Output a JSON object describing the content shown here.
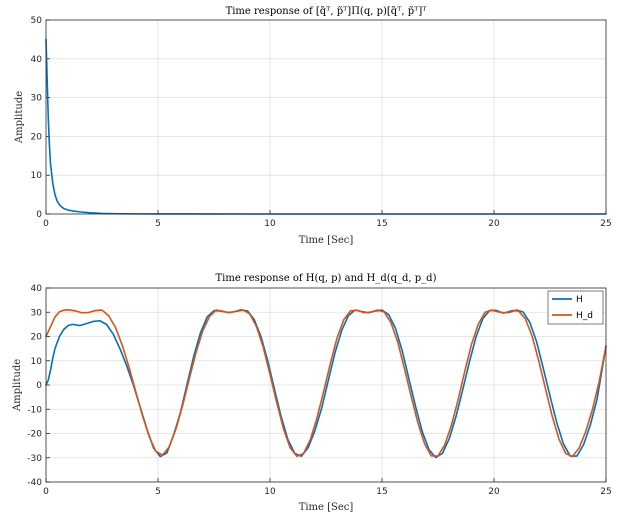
{
  "colors": {
    "H": "#0072bd",
    "H_d": "#d95319",
    "grid": "#dfdfdf",
    "axis": "#262626"
  },
  "chart_data": [
    {
      "type": "line",
      "title": "Time response of [q̃ᵀ, p̃ᵀ]Π(q, p)[q̃ᵀ, p̃ᵀ]ᵀ",
      "xlabel": "Time [Sec]",
      "ylabel": "Amplitude",
      "xlim": [
        0,
        25
      ],
      "ylim": [
        0,
        50
      ],
      "xticks": [
        0,
        5,
        10,
        15,
        20,
        25
      ],
      "yticks": [
        0,
        10,
        20,
        30,
        40,
        50
      ],
      "grid": true,
      "series": [
        {
          "color": "#0072bd",
          "x": [
            0,
            0.05,
            0.1,
            0.15,
            0.2,
            0.3,
            0.4,
            0.5,
            0.6,
            0.7,
            0.8,
            1.0,
            1.2,
            1.5,
            2.0,
            2.5,
            3.0,
            4.0,
            5.0,
            7.0,
            10.0,
            15.0,
            20.0,
            25.0
          ],
          "y": [
            45,
            35,
            25,
            18,
            13,
            8,
            5,
            3.3,
            2.4,
            1.8,
            1.4,
            1.0,
            0.8,
            0.55,
            0.3,
            0.15,
            0.08,
            0.03,
            0.01,
            0.01,
            0,
            0,
            0,
            0
          ]
        }
      ]
    },
    {
      "type": "line",
      "title": "Time response of H(q, p) and H_d(q_d, p_d)",
      "xlabel": "Time [Sec]",
      "ylabel": "Amplitude",
      "xlim": [
        0,
        25
      ],
      "ylim": [
        -40,
        40
      ],
      "xticks": [
        0,
        5,
        10,
        15,
        20,
        25
      ],
      "yticks": [
        -40,
        -30,
        -20,
        -10,
        0,
        10,
        20,
        30,
        40
      ],
      "grid": true,
      "legend": {
        "placement": "top-right",
        "entries": [
          "H",
          "H_d"
        ]
      },
      "series": [
        {
          "name": "H",
          "color": "#0072bd",
          "x": [
            0,
            0.1,
            0.2,
            0.3,
            0.4,
            0.6,
            0.8,
            1.0,
            1.2,
            1.5,
            1.8,
            2.1,
            2.4,
            2.7,
            3.0,
            3.3,
            3.6,
            3.9,
            4.2,
            4.5,
            4.8,
            5.1,
            5.4,
            5.7,
            6.0,
            6.3,
            6.6,
            6.9,
            7.2,
            7.5,
            7.8,
            8.1,
            8.4,
            8.7,
            9.0,
            9.3,
            9.6,
            9.9,
            10.2,
            10.5,
            10.8,
            11.1,
            11.4,
            11.7,
            12.0,
            12.3,
            12.6,
            12.9,
            13.2,
            13.5,
            13.8,
            14.1,
            14.4,
            14.7,
            15.0,
            15.3,
            15.6,
            15.9,
            16.2,
            16.5,
            16.8,
            17.1,
            17.4,
            17.7,
            18.0,
            18.3,
            18.6,
            18.9,
            19.2,
            19.5,
            19.8,
            20.1,
            20.4,
            20.7,
            21.0,
            21.3,
            21.6,
            21.9,
            22.2,
            22.5,
            22.8,
            23.1,
            23.4,
            23.7,
            24.0,
            24.3,
            24.6,
            25.0
          ],
          "y": [
            0,
            2,
            6,
            11,
            15,
            20,
            23,
            24.6,
            25,
            24.5,
            25.3,
            26.2,
            26.5,
            25,
            21,
            15,
            8,
            0,
            -9,
            -18,
            -26,
            -29.5,
            -28,
            -20.5,
            -11.4,
            0.4,
            12,
            21.6,
            28.1,
            30.7,
            30.5,
            29.9,
            30.2,
            31,
            30.5,
            26.9,
            19.9,
            9.9,
            -1.8,
            -13.1,
            -22.5,
            -28.2,
            -29.4,
            -25.9,
            -19,
            -9.8,
            1.8,
            13.2,
            22.5,
            28.6,
            30.9,
            30.3,
            29.8,
            30.5,
            30.9,
            29,
            23.4,
            14.2,
            2.6,
            -8.9,
            -19.3,
            -26.7,
            -29.9,
            -28.2,
            -22.2,
            -13.1,
            -2.1,
            9.4,
            19.9,
            27.4,
            30.7,
            30.8,
            29.7,
            30,
            30.9,
            30.1,
            25.8,
            17.9,
            6.9,
            -4.5,
            -15.5,
            -24.3,
            -29.3,
            -29.3,
            -24.6,
            -16.5,
            -5.9,
            16
          ]
        },
        {
          "name": "H_d",
          "color": "#d95319",
          "x": [
            0,
            0.2,
            0.4,
            0.6,
            0.8,
            1.0,
            1.3,
            1.6,
            1.9,
            2.2,
            2.5,
            2.8,
            3.1,
            3.4,
            3.7,
            4.0,
            4.3,
            4.6,
            4.9,
            5.2,
            5.5,
            5.8,
            6.1,
            6.4,
            6.7,
            7.0,
            7.3,
            7.6,
            7.9,
            8.2,
            8.5,
            8.8,
            9.1,
            9.4,
            9.7,
            10.0,
            10.3,
            10.6,
            10.9,
            11.2,
            11.5,
            11.8,
            12.1,
            12.4,
            12.7,
            13.0,
            13.3,
            13.6,
            13.9,
            14.2,
            14.5,
            14.8,
            15.1,
            15.4,
            15.7,
            16.0,
            16.3,
            16.6,
            16.9,
            17.2,
            17.5,
            17.8,
            18.1,
            18.4,
            18.7,
            19.0,
            19.3,
            19.6,
            19.9,
            20.2,
            20.5,
            20.8,
            21.1,
            21.4,
            21.7,
            22.0,
            22.3,
            22.6,
            22.9,
            23.2,
            23.5,
            23.8,
            24.1,
            24.4,
            24.7,
            25.0
          ],
          "y": [
            20,
            24,
            28,
            30.2,
            30.9,
            31,
            30.6,
            29.8,
            29.9,
            30.7,
            30.9,
            28.5,
            23.8,
            16.5,
            7.5,
            -2.5,
            -12.4,
            -21.1,
            -27.3,
            -28.9,
            -25.5,
            -18.2,
            -8.4,
            2.7,
            13.5,
            22.4,
            28.3,
            30.9,
            30.4,
            29.8,
            30.4,
            30.9,
            29.3,
            24,
            15.5,
            4.4,
            -7.2,
            -18,
            -25.9,
            -29.4,
            -28.2,
            -22.5,
            -13.5,
            -2.5,
            9.1,
            19.6,
            27,
            30.6,
            30.8,
            29.8,
            30.1,
            30.9,
            30.1,
            25.7,
            17.8,
            6.9,
            -4.6,
            -15.5,
            -24.2,
            -29.2,
            -29.3,
            -24.7,
            -16.6,
            -6,
            5.8,
            16.9,
            25.1,
            30,
            30.9,
            30.1,
            29.8,
            30.7,
            30.5,
            27.3,
            20.2,
            9.9,
            -1.6,
            -12.9,
            -22.3,
            -28.2,
            -29.5,
            -26,
            -19.1,
            -9.9,
            1.6,
            16
          ]
        }
      ]
    }
  ]
}
